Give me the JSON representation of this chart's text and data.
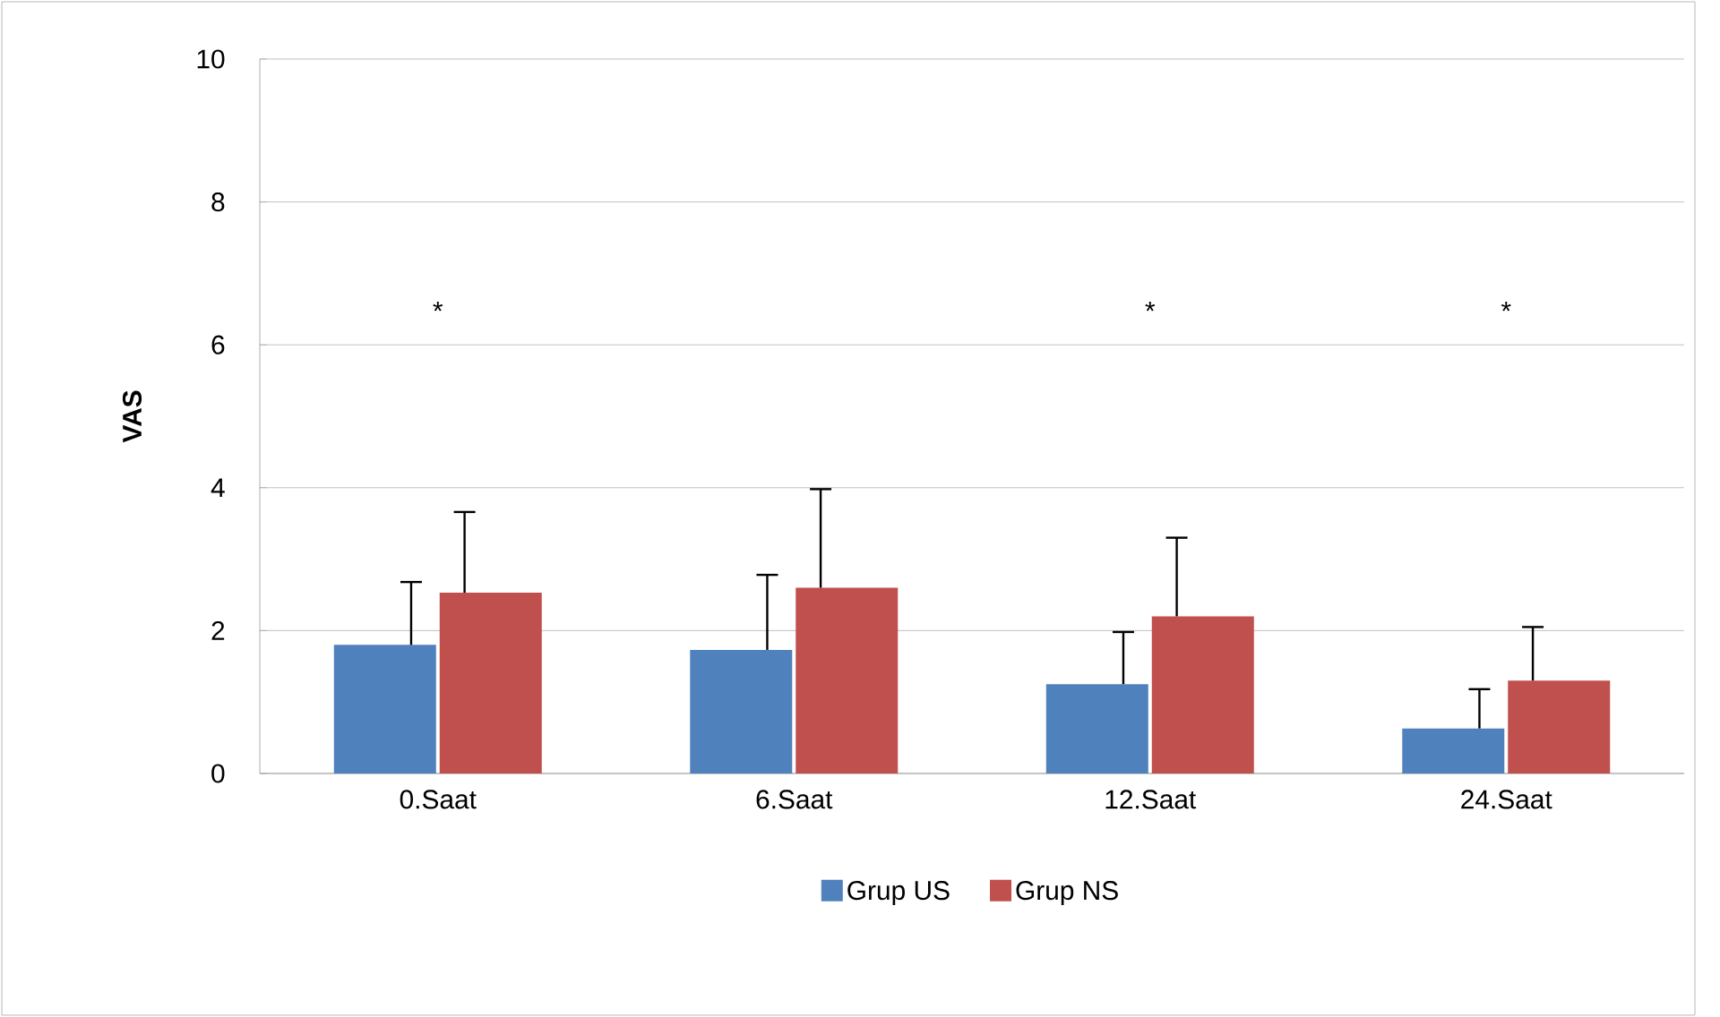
{
  "chart_data": {
    "type": "bar",
    "ylabel": "VAS",
    "categories": [
      "0.Saat",
      "6.Saat",
      "12.Saat",
      "24.Saat"
    ],
    "series": [
      {
        "name": "Grup US",
        "color": "#4f81bd",
        "values": [
          1.8,
          1.73,
          1.25,
          0.63
        ],
        "errors": [
          [
            1.8,
            2.68
          ],
          [
            1.73,
            2.78
          ],
          [
            1.25,
            1.98
          ],
          [
            0.63,
            1.18
          ]
        ]
      },
      {
        "name": "Grup NS",
        "color": "#c0504d",
        "values": [
          2.53,
          2.6,
          2.2,
          1.3
        ],
        "errors": [
          [
            2.53,
            3.66
          ],
          [
            2.6,
            3.98
          ],
          [
            2.2,
            3.3
          ],
          [
            1.3,
            2.05
          ]
        ]
      }
    ],
    "annotations": [
      "*",
      "*",
      "*"
    ],
    "ylim": [
      0,
      10
    ],
    "yticks": [
      0,
      2,
      4,
      6,
      8,
      10
    ],
    "grid": "y",
    "legend": "bottom"
  }
}
